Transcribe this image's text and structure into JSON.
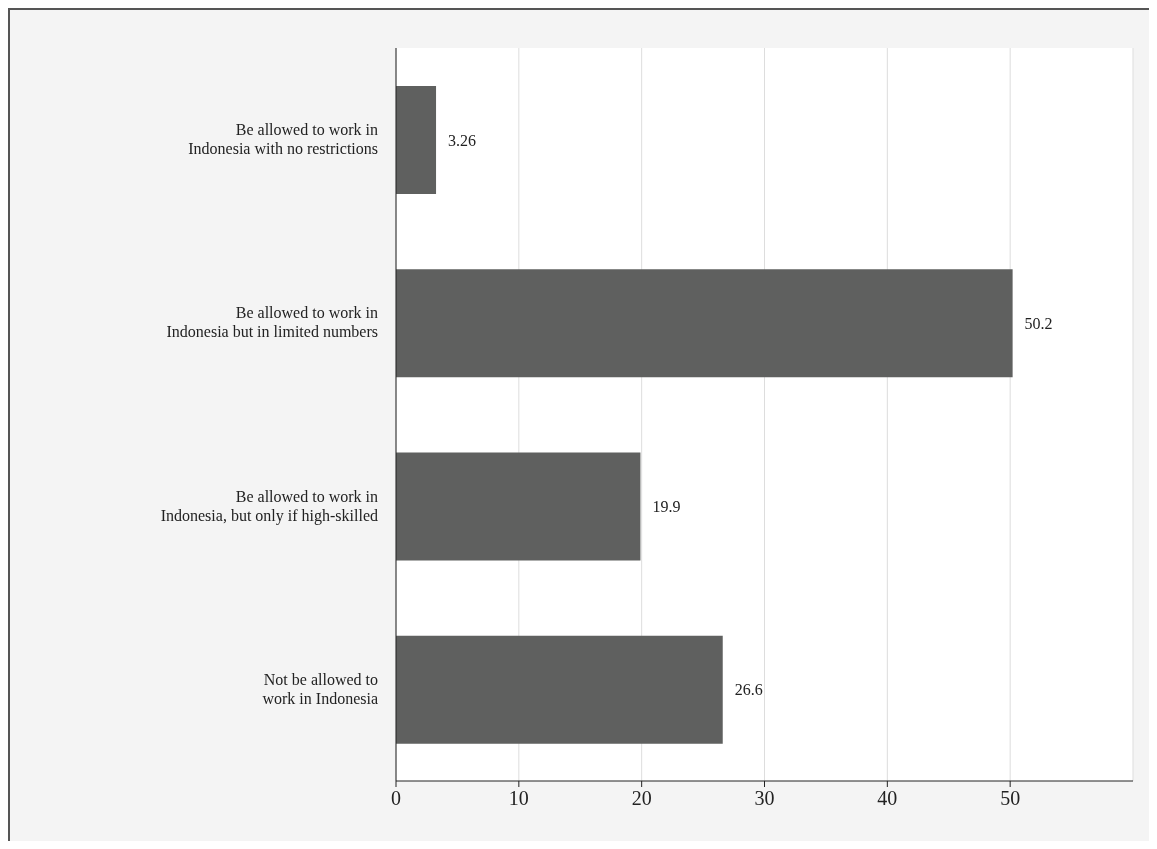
{
  "chart_data": {
    "type": "bar",
    "orientation": "horizontal",
    "categories": [
      "Be allowed to work in\nIndonesia with no restrictions",
      "Be allowed to work in\nIndonesia but in limited numbers",
      "Be allowed to work in\nIndonesia, but only if high-skilled",
      "Not be allowed to\nwork in Indonesia"
    ],
    "values": [
      3.26,
      50.2,
      19.9,
      26.6
    ],
    "color": "#5f605f",
    "xlim": [
      0,
      60
    ],
    "xticks": [
      0,
      10,
      20,
      30,
      40,
      50
    ],
    "grid": "x",
    "data_labels": true
  }
}
